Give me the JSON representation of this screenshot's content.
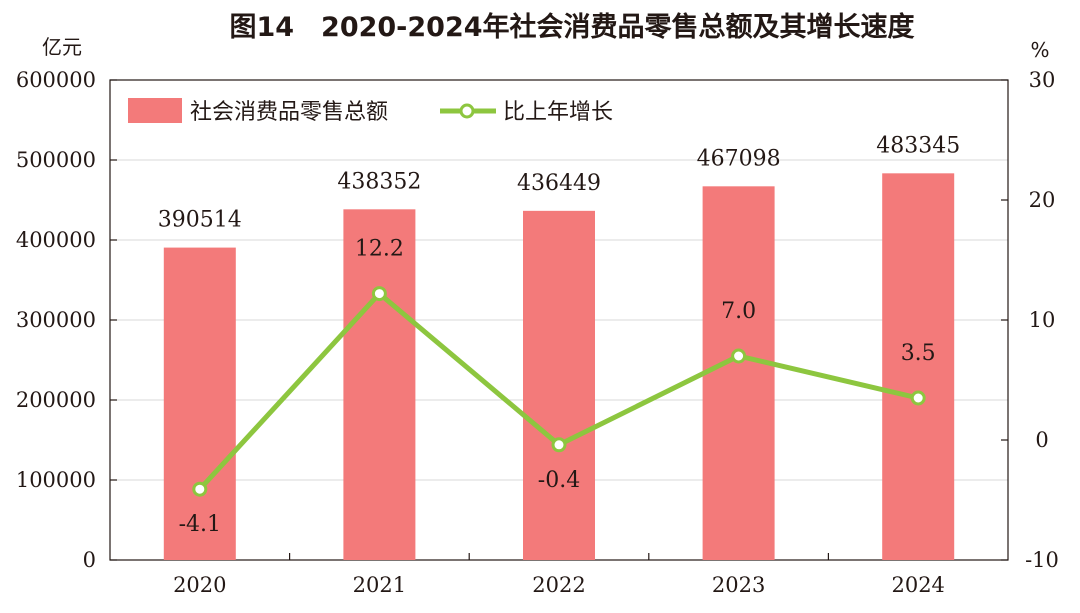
{
  "chart_data": {
    "type": "bar+line",
    "title": "图14　2020-2024年社会消费品零售总额及其增长速度",
    "y_left_unit": "亿元",
    "y_right_unit": "%",
    "categories": [
      "2020",
      "2021",
      "2022",
      "2023",
      "2024"
    ],
    "y_left_ticks": [
      "0",
      "100000",
      "200000",
      "300000",
      "400000",
      "500000",
      "600000"
    ],
    "y_right_ticks": [
      "-10",
      "0",
      "10",
      "20",
      "30"
    ],
    "y_left_lim": [
      0,
      600000
    ],
    "y_right_lim": [
      -10,
      30
    ],
    "grid": true,
    "legend_position": "top-left",
    "series": [
      {
        "name": "社会消费品零售总额",
        "type": "bar",
        "axis": "left",
        "values": [
          390514,
          438352,
          436449,
          467098,
          483345
        ],
        "labels": [
          "390514",
          "438352",
          "436449",
          "467098",
          "483345"
        ],
        "color": "#f37a7a"
      },
      {
        "name": "比上年增长",
        "type": "line",
        "axis": "right",
        "values": [
          -4.1,
          12.2,
          -0.4,
          7.0,
          3.5
        ],
        "labels": [
          "-4.1",
          "12.2",
          "-0.4",
          "7.0",
          "3.5"
        ],
        "color": "#8dc63f"
      }
    ]
  }
}
